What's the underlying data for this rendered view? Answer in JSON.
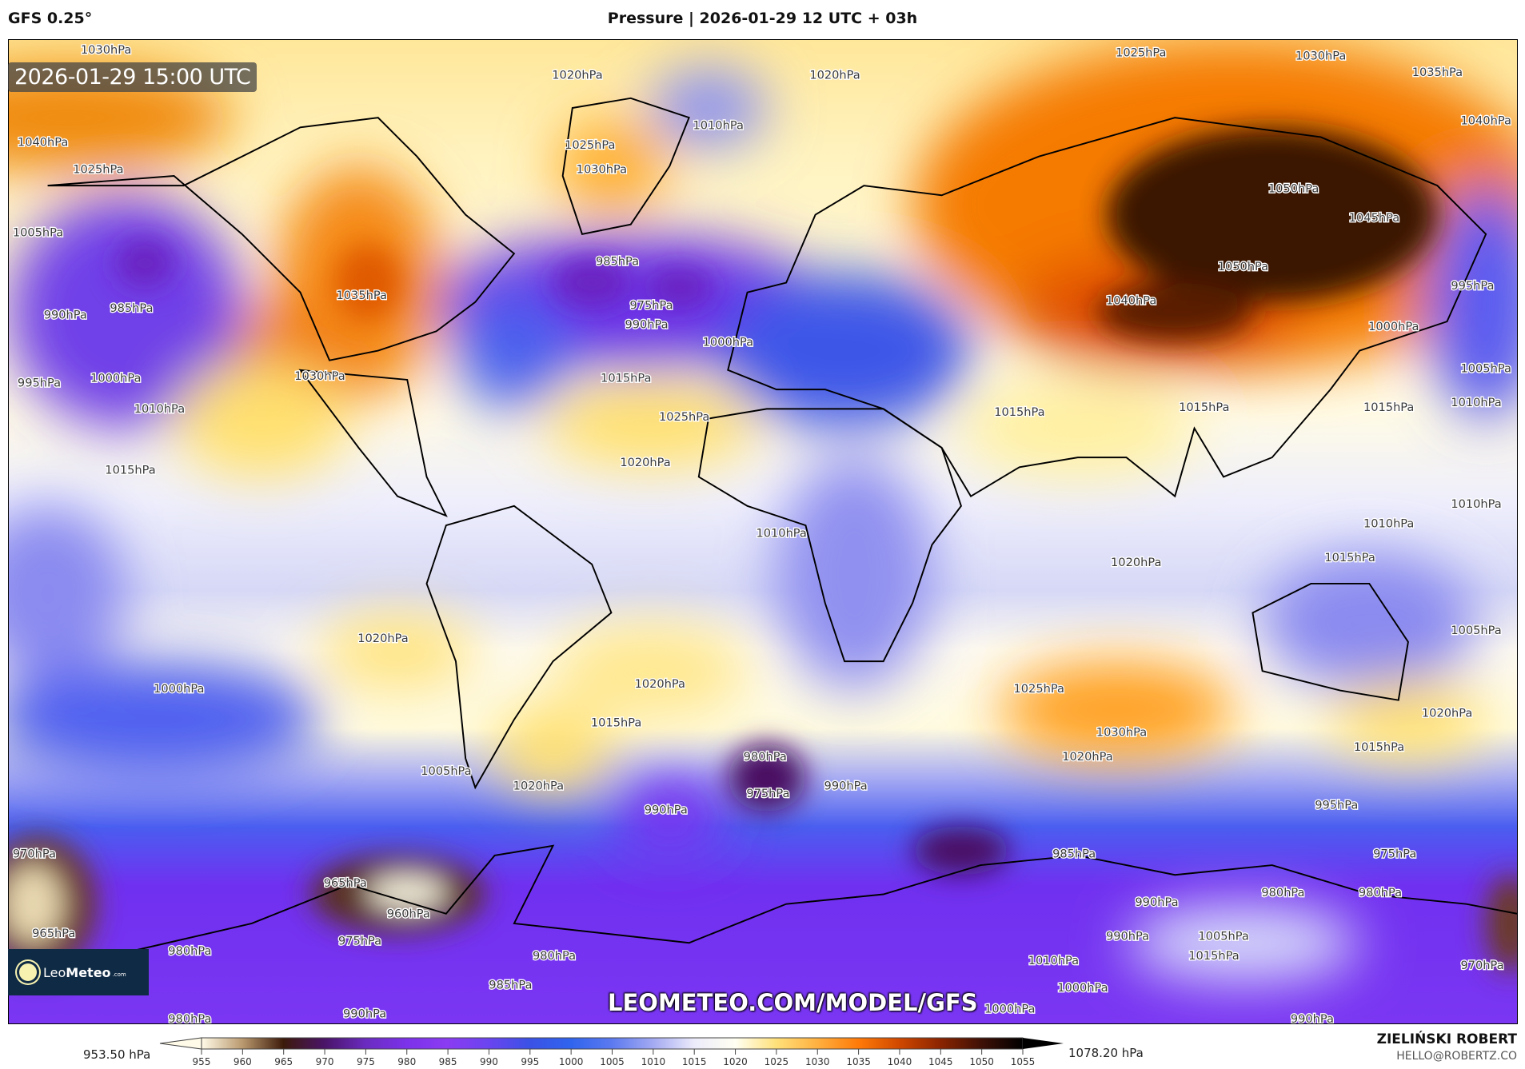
{
  "header": {
    "model": "GFS 0.25°",
    "title": "Pressure | 2026-01-29 12 UTC + 03h"
  },
  "map": {
    "valid_time": "2026-01-29 15:00 UTC",
    "watermark_url": "LEOMETEO.COM/MODEL/GFS",
    "logo_text": {
      "leo": "Leo",
      "meteo": "Meteo",
      "tld": ".com"
    },
    "contour_labels": [
      "1030hPa",
      "1040hPa",
      "1025hPa",
      "1005hPa",
      "990hPa",
      "985hPa",
      "995hPa",
      "1000hPa",
      "1010hPa",
      "1015hPa",
      "1020hPa",
      "1025hPa",
      "1030hPa",
      "1035hPa",
      "1030hPa",
      "1020hPa",
      "1010hPa",
      "985hPa",
      "975hPa",
      "990hPa",
      "1000hPa",
      "1015hPa",
      "1025hPa",
      "1020hPa",
      "1025hPa",
      "1030hPa",
      "1035hPa",
      "1040hPa",
      "1050hPa",
      "1045hPa",
      "1050hPa",
      "1040hPa",
      "1000hPa",
      "995hPa",
      "1005hPa",
      "1010hPa",
      "1015hPa",
      "1015hPa",
      "1015hPa",
      "1010hPa",
      "1015hPa",
      "1005hPa",
      "1020hPa",
      "1010hPa",
      "1020hPa",
      "1020hPa",
      "1015hPa",
      "1025hPa",
      "1030hPa",
      "1020hPa",
      "1015hPa",
      "1020hPa",
      "1000hPa",
      "1005hPa",
      "1010hPa",
      "1020hPa",
      "980hPa",
      "975hPa",
      "990hPa",
      "985hPa",
      "995hPa",
      "990hPa",
      "975hPa",
      "970hPa",
      "965hPa",
      "960hPa",
      "975hPa",
      "980hPa",
      "980hPa",
      "985hPa",
      "990hPa",
      "980hPa",
      "980hPa",
      "990hPa",
      "1005hPa",
      "1015hPa",
      "1010hPa",
      "1000hPa",
      "1000hPa",
      "990hPa",
      "990hPa",
      "970hPa",
      "965hPa",
      "980hPa"
    ]
  },
  "colorbar": {
    "unit": "hPa",
    "min_label": "953.50 hPa",
    "max_label": "1078.20 hPa",
    "ticks": [
      "955",
      "960",
      "965",
      "970",
      "975",
      "980",
      "985",
      "990",
      "995",
      "1000",
      "1005",
      "1010",
      "1015",
      "1020",
      "1025",
      "1030",
      "1035",
      "1040",
      "1045",
      "1050",
      "1055"
    ],
    "colors": [
      "#fffbe8",
      "#b9986e",
      "#3c1a0a",
      "#4a1468",
      "#6a2cc0",
      "#7c32ea",
      "#8a3cf2",
      "#6a44f0",
      "#3a52e6",
      "#3064ee",
      "#5c7af0",
      "#a4aaf2",
      "#ecebfb",
      "#fffff2",
      "#ffe07a",
      "#ffb040",
      "#ff7a08",
      "#d04800",
      "#8a2400",
      "#3e1006",
      "#000000"
    ]
  },
  "credits": {
    "author": "ZIELIŃSKI ROBERT",
    "email": "HELLO@ROBERTZ.CO"
  }
}
